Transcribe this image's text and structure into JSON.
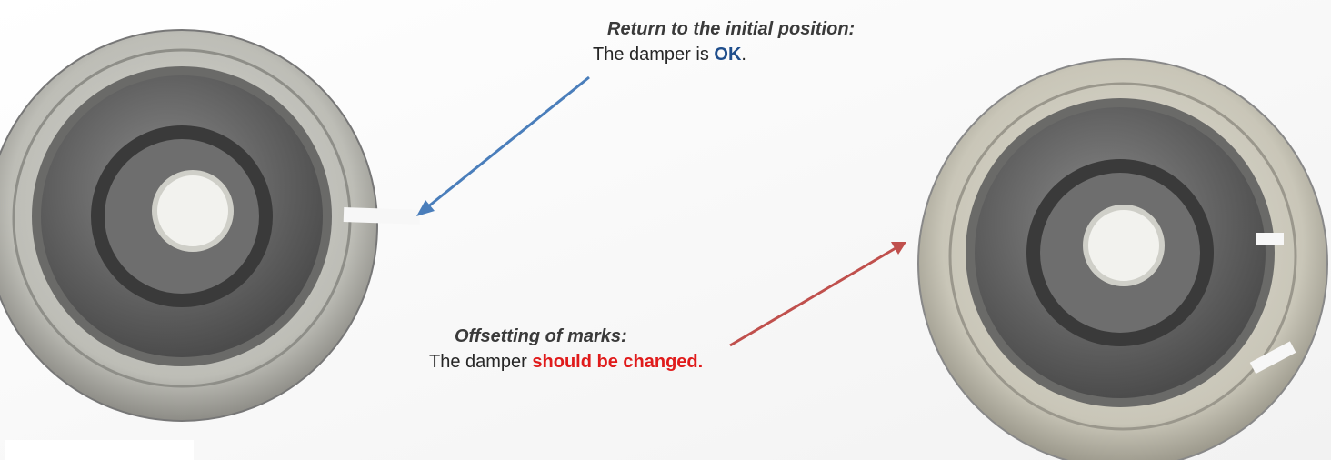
{
  "captions": [
    {
      "title": "Return to the initial position:",
      "text": "The damper is",
      "highlight": "OK",
      "end": "."
    },
    {
      "title": "Offsetting of marks:",
      "text": "The damper",
      "highlight": "should be changed."
    }
  ]
}
